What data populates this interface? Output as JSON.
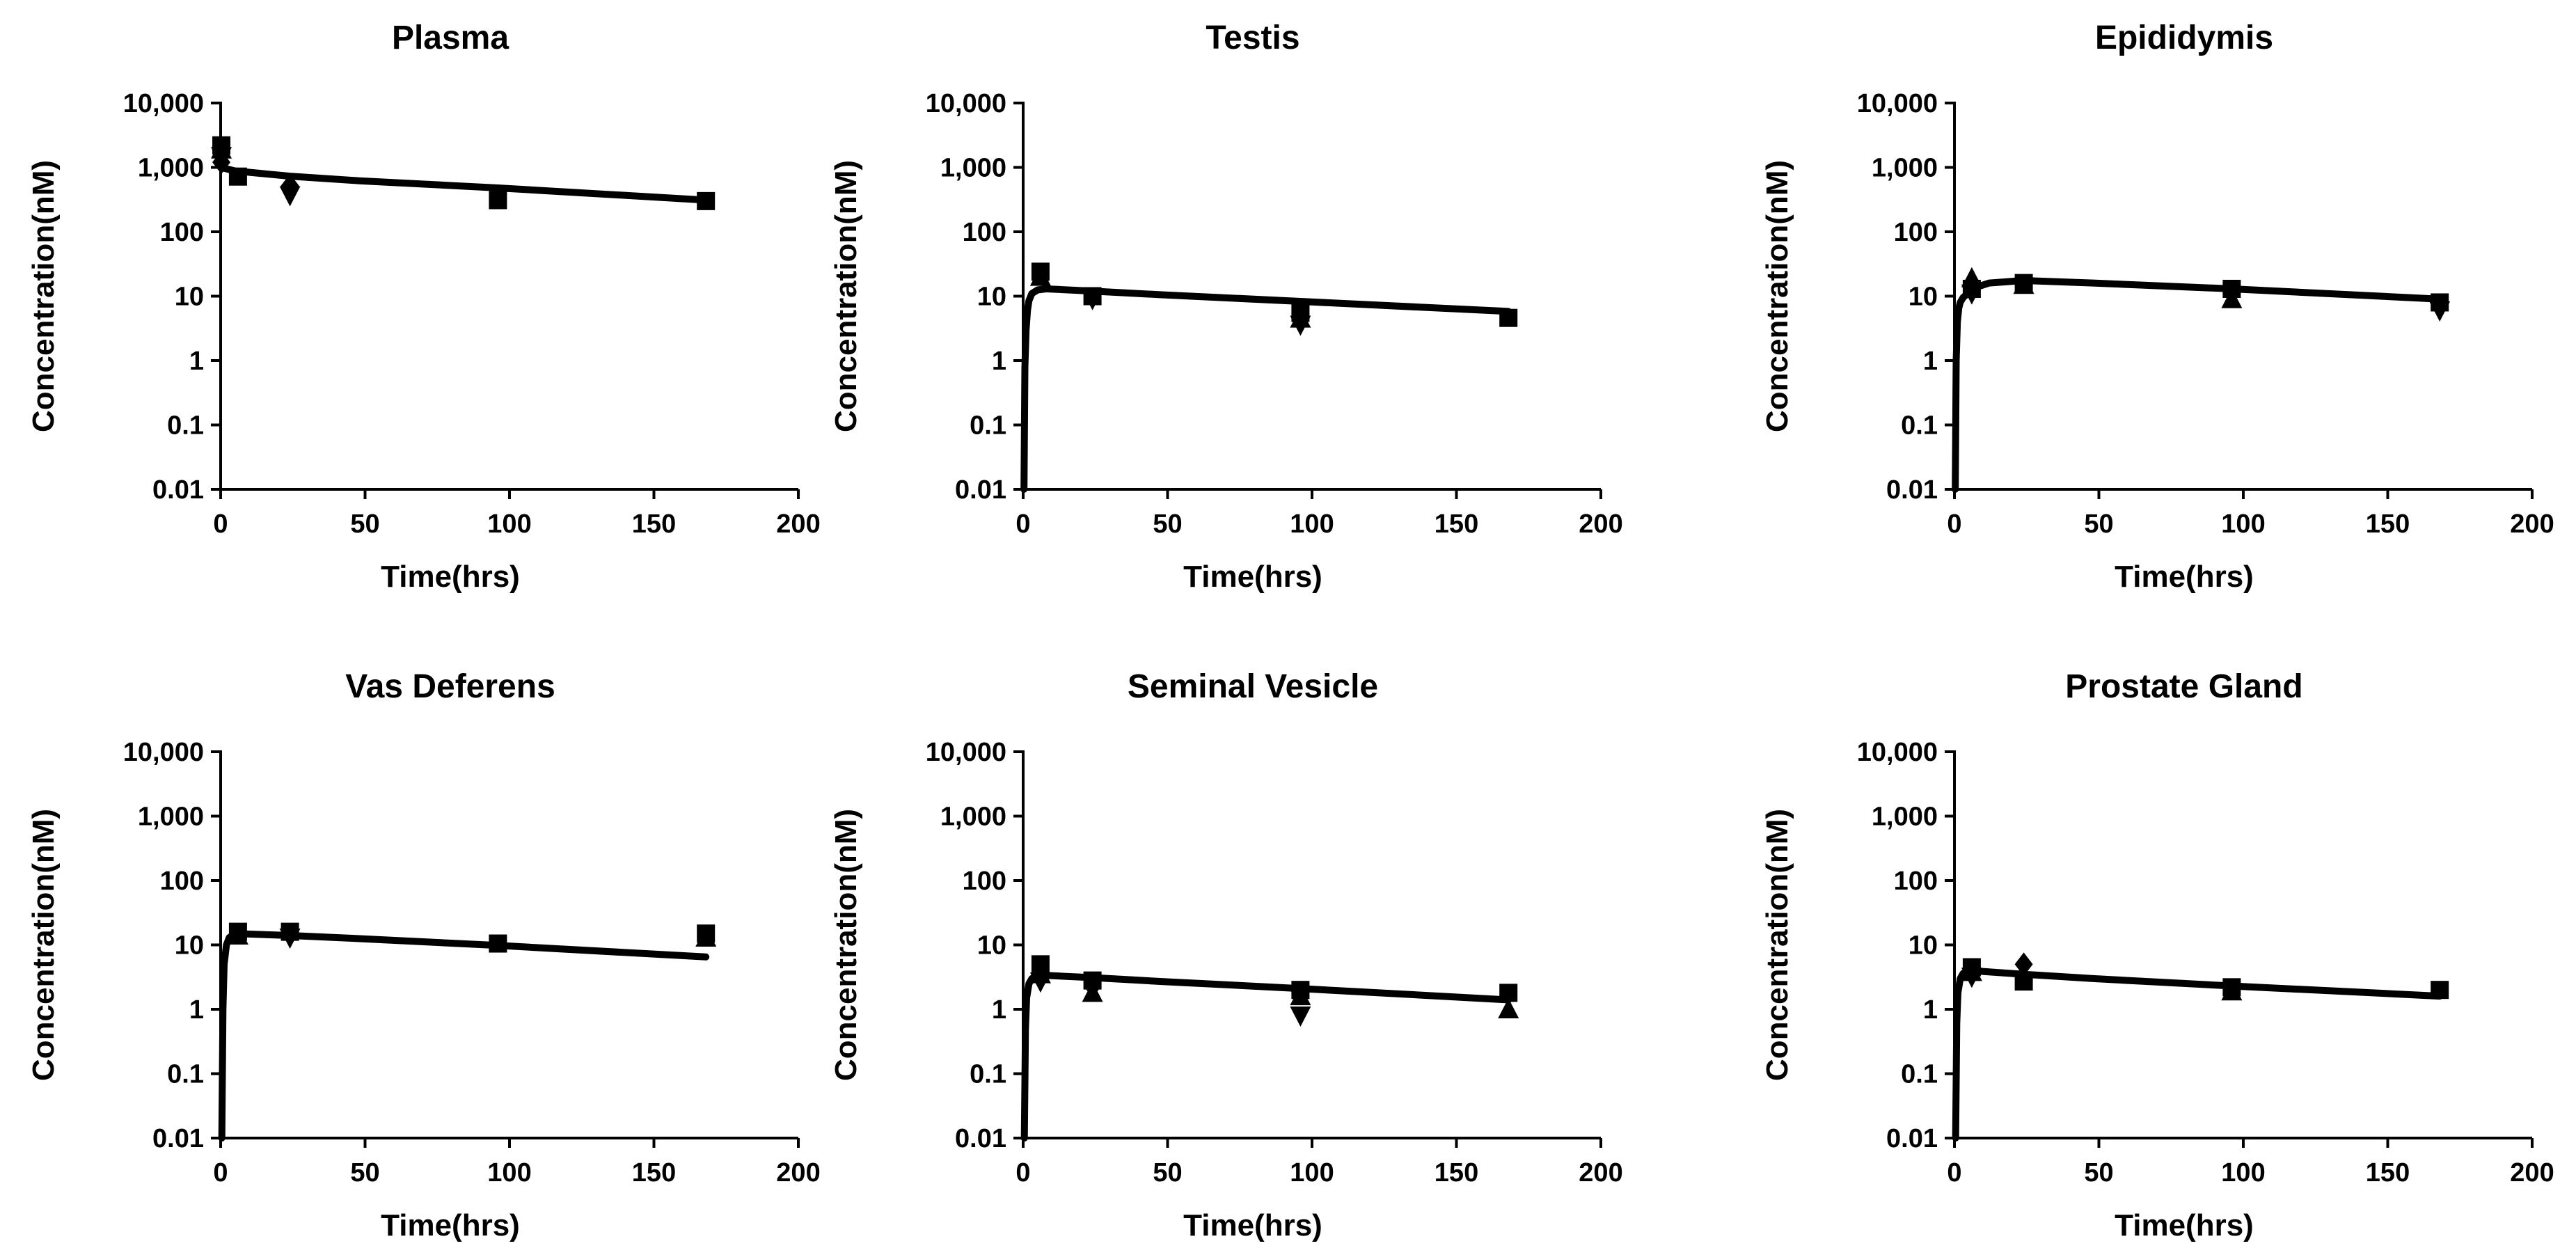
{
  "figure": {
    "background": "#ffffff",
    "line_color": "#000000"
  },
  "chart_data": [
    {
      "type": "scatter",
      "title": "Plasma",
      "xlabel": "Time(hrs)",
      "ylabel": "Concentration(nM)",
      "xlim": [
        0,
        200
      ],
      "xticks": [
        0,
        50,
        100,
        150,
        200
      ],
      "xtick_labels": [
        "0",
        "50",
        "100",
        "150",
        "200"
      ],
      "ylim": [
        0.01,
        10000
      ],
      "yscale": "log",
      "yticks": [
        0.01,
        0.1,
        1,
        10,
        100,
        1000,
        10000
      ],
      "ytick_labels": [
        "0.01",
        "0.1",
        "1",
        "10",
        "100",
        "1,000",
        "10,000"
      ],
      "grid": false,
      "fit": {
        "x": [
          0,
          5,
          24,
          48,
          96,
          168
        ],
        "y": [
          1000,
          880,
          730,
          620,
          480,
          310
        ]
      },
      "points": [
        {
          "marker": "square",
          "x": 0.25,
          "y": 2200
        },
        {
          "marker": "triangle-up",
          "x": 0.25,
          "y": 1900
        },
        {
          "marker": "triangle-down",
          "x": 0.25,
          "y": 1500
        },
        {
          "marker": "diamond",
          "x": 0.25,
          "y": 1200
        },
        {
          "marker": "square",
          "x": 6,
          "y": 720
        },
        {
          "marker": "diamond",
          "x": 24,
          "y": 520
        },
        {
          "marker": "triangle-down",
          "x": 24,
          "y": 370
        },
        {
          "marker": "square",
          "x": 96,
          "y": 310
        },
        {
          "marker": "square",
          "x": 168,
          "y": 300
        }
      ]
    },
    {
      "type": "scatter",
      "title": "Testis",
      "xlabel": "Time(hrs)",
      "ylabel": "Concentration(nM)",
      "xlim": [
        0,
        200
      ],
      "xticks": [
        0,
        50,
        100,
        150,
        200
      ],
      "xtick_labels": [
        "0",
        "50",
        "100",
        "150",
        "200"
      ],
      "ylim": [
        0.01,
        10000
      ],
      "yscale": "log",
      "yticks": [
        0.01,
        0.1,
        1,
        10,
        100,
        1000,
        10000
      ],
      "ytick_labels": [
        "0.01",
        "0.1",
        "1",
        "10",
        "100",
        "1,000",
        "10,000"
      ],
      "grid": false,
      "fit": {
        "x": [
          0.3,
          0.6,
          1,
          1.5,
          2,
          3,
          5,
          8,
          24,
          48,
          96,
          168
        ],
        "y": [
          0.01,
          0.8,
          3,
          6,
          8.5,
          11,
          12.5,
          13,
          12,
          10.5,
          8.3,
          5.8
        ]
      },
      "points": [
        {
          "marker": "square",
          "x": 6,
          "y": 24
        },
        {
          "marker": "triangle-up",
          "x": 6,
          "y": 20
        },
        {
          "marker": "square",
          "x": 24,
          "y": 10
        },
        {
          "marker": "triangle-down",
          "x": 24,
          "y": 9
        },
        {
          "marker": "square",
          "x": 96,
          "y": 5.5
        },
        {
          "marker": "triangle-up",
          "x": 96,
          "y": 4.5
        },
        {
          "marker": "triangle-down",
          "x": 96,
          "y": 3.6
        },
        {
          "marker": "square",
          "x": 168,
          "y": 4.6
        }
      ]
    },
    {
      "type": "scatter",
      "title": "Epididymis",
      "xlabel": "Time(hrs)",
      "ylabel": "Concentration(nM)",
      "xlim": [
        0,
        200
      ],
      "xticks": [
        0,
        50,
        100,
        150,
        200
      ],
      "xtick_labels": [
        "0",
        "50",
        "100",
        "150",
        "200"
      ],
      "ylim": [
        0.01,
        10000
      ],
      "yscale": "log",
      "yticks": [
        0.01,
        0.1,
        1,
        10,
        100,
        1000,
        10000
      ],
      "ytick_labels": [
        "0.01",
        "0.1",
        "1",
        "10",
        "100",
        "1,000",
        "10,000"
      ],
      "grid": false,
      "fit": {
        "x": [
          0.3,
          0.6,
          1,
          1.5,
          2,
          3,
          5,
          8,
          12,
          24,
          48,
          96,
          168
        ],
        "y": [
          0.01,
          1,
          4,
          6.5,
          8,
          9.5,
          11.5,
          14,
          16,
          17.5,
          16,
          13,
          9
        ]
      },
      "points": [
        {
          "marker": "triangle-up",
          "x": 6,
          "y": 19
        },
        {
          "marker": "square",
          "x": 6,
          "y": 13
        },
        {
          "marker": "triangle-down",
          "x": 6,
          "y": 11
        },
        {
          "marker": "square",
          "x": 24,
          "y": 16
        },
        {
          "marker": "triangle-up",
          "x": 24,
          "y": 15
        },
        {
          "marker": "square",
          "x": 96,
          "y": 13
        },
        {
          "marker": "triangle-up",
          "x": 96,
          "y": 9
        },
        {
          "marker": "square",
          "x": 168,
          "y": 8
        },
        {
          "marker": "triangle-down",
          "x": 168,
          "y": 6
        }
      ]
    },
    {
      "type": "scatter",
      "title": "Vas Deferens",
      "xlabel": "Time(hrs)",
      "ylabel": "Concentration(nM)",
      "xlim": [
        0,
        200
      ],
      "xticks": [
        0,
        50,
        100,
        150,
        200
      ],
      "xtick_labels": [
        "0",
        "50",
        "100",
        "150",
        "200"
      ],
      "ylim": [
        0.01,
        10000
      ],
      "yscale": "log",
      "yticks": [
        0.01,
        0.1,
        1,
        10,
        100,
        1000,
        10000
      ],
      "ytick_labels": [
        "0.01",
        "0.1",
        "1",
        "10",
        "100",
        "1,000",
        "10,000"
      ],
      "grid": false,
      "fit": {
        "x": [
          0.4,
          0.8,
          1.2,
          2,
          3,
          5,
          24,
          48,
          96,
          168
        ],
        "y": [
          0.01,
          1,
          5,
          10,
          13,
          15,
          14,
          12.5,
          9.8,
          6.5
        ]
      },
      "points": [
        {
          "marker": "square",
          "x": 6,
          "y": 16
        },
        {
          "marker": "triangle-up",
          "x": 6,
          "y": 14
        },
        {
          "marker": "square",
          "x": 24,
          "y": 16
        },
        {
          "marker": "triangle-down",
          "x": 24,
          "y": 13
        },
        {
          "marker": "square",
          "x": 96,
          "y": 10.5
        },
        {
          "marker": "square",
          "x": 168,
          "y": 15
        },
        {
          "marker": "triangle-up",
          "x": 168,
          "y": 13
        }
      ]
    },
    {
      "type": "scatter",
      "title": "Seminal Vesicle",
      "xlabel": "Time(hrs)",
      "ylabel": "Concentration(nM)",
      "xlim": [
        0,
        200
      ],
      "xticks": [
        0,
        50,
        100,
        150,
        200
      ],
      "xtick_labels": [
        "0",
        "50",
        "100",
        "150",
        "200"
      ],
      "ylim": [
        0.01,
        10000
      ],
      "yscale": "log",
      "yticks": [
        0.01,
        0.1,
        1,
        10,
        100,
        1000,
        10000
      ],
      "ytick_labels": [
        "0.01",
        "0.1",
        "1",
        "10",
        "100",
        "1,000",
        "10,000"
      ],
      "grid": false,
      "fit": {
        "x": [
          0.4,
          0.8,
          1.2,
          2,
          3,
          5,
          24,
          48,
          96,
          168
        ],
        "y": [
          0.01,
          0.5,
          1.5,
          2.5,
          3,
          3.4,
          3.1,
          2.7,
          2.1,
          1.4
        ]
      },
      "points": [
        {
          "marker": "square",
          "x": 6,
          "y": 5
        },
        {
          "marker": "triangle-up",
          "x": 6,
          "y": 3.5
        },
        {
          "marker": "triangle-down",
          "x": 6,
          "y": 2.7
        },
        {
          "marker": "square",
          "x": 24,
          "y": 2.8
        },
        {
          "marker": "diamond",
          "x": 24,
          "y": 2.3
        },
        {
          "marker": "triangle-up",
          "x": 24,
          "y": 1.8
        },
        {
          "marker": "square",
          "x": 96,
          "y": 2
        },
        {
          "marker": "triangle-up",
          "x": 96,
          "y": 1.6
        },
        {
          "marker": "triangle-down",
          "x": 96,
          "y": 0.8
        },
        {
          "marker": "square",
          "x": 168,
          "y": 1.8
        },
        {
          "marker": "triangle-up",
          "x": 168,
          "y": 1
        }
      ]
    },
    {
      "type": "scatter",
      "title": "Prostate Gland",
      "xlabel": "Time(hrs)",
      "ylabel": "Concentration(nM)",
      "xlim": [
        0,
        200
      ],
      "xticks": [
        0,
        50,
        100,
        150,
        200
      ],
      "xtick_labels": [
        "0",
        "50",
        "100",
        "150",
        "200"
      ],
      "ylim": [
        0.01,
        10000
      ],
      "yscale": "log",
      "yticks": [
        0.01,
        0.1,
        1,
        10,
        100,
        1000,
        10000
      ],
      "ytick_labels": [
        "0.01",
        "0.1",
        "1",
        "10",
        "100",
        "1,000",
        "10,000"
      ],
      "grid": false,
      "fit": {
        "x": [
          0.4,
          0.8,
          1.2,
          2,
          3,
          5,
          24,
          48,
          96,
          168
        ],
        "y": [
          0.01,
          0.6,
          1.8,
          3,
          3.6,
          4,
          3.5,
          3,
          2.3,
          1.6
        ]
      },
      "points": [
        {
          "marker": "square",
          "x": 6,
          "y": 4.5
        },
        {
          "marker": "triangle-up",
          "x": 6,
          "y": 3.8
        },
        {
          "marker": "triangle-down",
          "x": 6,
          "y": 3.2
        },
        {
          "marker": "diamond",
          "x": 24,
          "y": 5
        },
        {
          "marker": "square",
          "x": 24,
          "y": 2.7
        },
        {
          "marker": "square",
          "x": 96,
          "y": 2.2
        },
        {
          "marker": "triangle-up",
          "x": 96,
          "y": 1.9
        },
        {
          "marker": "square",
          "x": 168,
          "y": 2
        }
      ]
    }
  ]
}
